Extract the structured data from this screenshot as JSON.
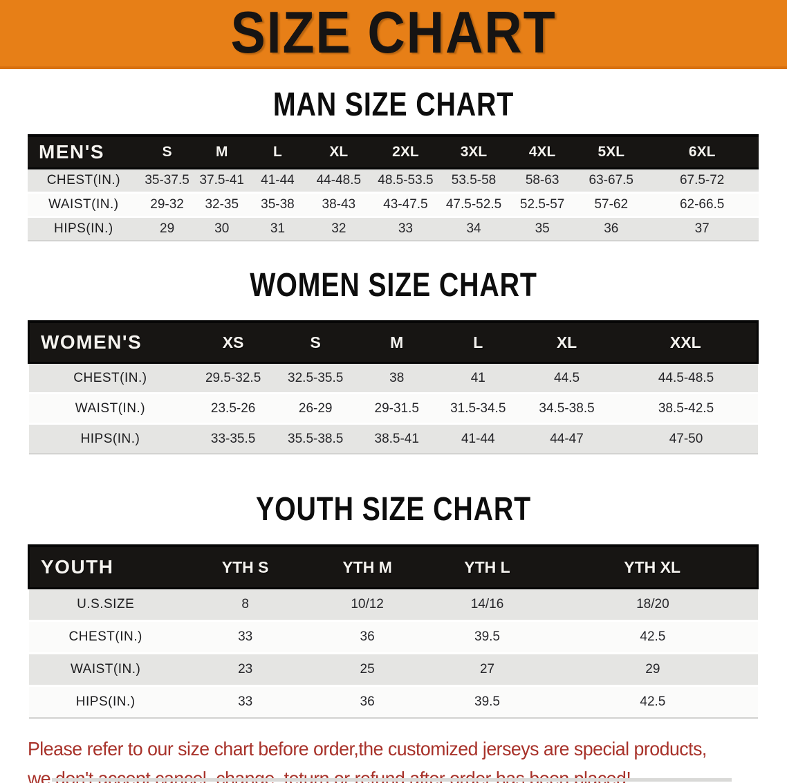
{
  "banner": {
    "title": "SIZE CHART"
  },
  "colors": {
    "banner_orange": "#e77f17",
    "header_black": "#171513",
    "row_gray": "#e5e5e3",
    "row_white": "#fbfbfa",
    "disclaimer_red": "#a8322a"
  },
  "sections": [
    {
      "title": "MAN SIZE CHART",
      "corner_label": "MEN'S",
      "columns": [
        "S",
        "M",
        "L",
        "XL",
        "2XL",
        "3XL",
        "4XL",
        "5XL",
        "6XL"
      ],
      "rows": [
        {
          "label": "CHEST(IN.)",
          "values": [
            "35-37.5",
            "37.5-41",
            "41-44",
            "44-48.5",
            "48.5-53.5",
            "53.5-58",
            "58-63",
            "63-67.5",
            "67.5-72"
          ]
        },
        {
          "label": "WAIST(IN.)",
          "values": [
            "29-32",
            "32-35",
            "35-38",
            "38-43",
            "43-47.5",
            "47.5-52.5",
            "52.5-57",
            "57-62",
            "62-66.5"
          ]
        },
        {
          "label": "HIPS(IN.)",
          "values": [
            "29",
            "30",
            "31",
            "32",
            "33",
            "34",
            "35",
            "36",
            "37"
          ]
        }
      ]
    },
    {
      "title": "WOMEN SIZE CHART",
      "corner_label": "WOMEN'S",
      "columns": [
        "XS",
        "S",
        "M",
        "L",
        "XL",
        "XXL"
      ],
      "rows": [
        {
          "label": "CHEST(IN.)",
          "values": [
            "29.5-32.5",
            "32.5-35.5",
            "38",
            "41",
            "44.5",
            "44.5-48.5"
          ]
        },
        {
          "label": "WAIST(IN.)",
          "values": [
            "23.5-26",
            "26-29",
            "29-31.5",
            "31.5-34.5",
            "34.5-38.5",
            "38.5-42.5"
          ]
        },
        {
          "label": "HIPS(IN.)",
          "values": [
            "33-35.5",
            "35.5-38.5",
            "38.5-41",
            "41-44",
            "44-47",
            "47-50"
          ]
        }
      ]
    },
    {
      "title": "YOUTH SIZE CHART",
      "corner_label": "YOUTH",
      "columns": [
        "YTH S",
        "YTH M",
        "YTH L",
        "YTH XL"
      ],
      "rows": [
        {
          "label": "U.S.SIZE",
          "values": [
            "8",
            "10/12",
            "14/16",
            "18/20"
          ]
        },
        {
          "label": "CHEST(IN.)",
          "values": [
            "33",
            "36",
            "39.5",
            "42.5"
          ]
        },
        {
          "label": "WAIST(IN.)",
          "values": [
            "23",
            "25",
            "27",
            "29"
          ]
        },
        {
          "label": "HIPS(IN.)",
          "values": [
            "33",
            "36",
            "39.5",
            "42.5"
          ]
        }
      ]
    }
  ],
  "disclaimer": {
    "line1": "Please refer to our size chart before order,the customized jerseys are special products,",
    "line2": "we don't accept cancel, change, teturn or refund after order has been placed!"
  }
}
